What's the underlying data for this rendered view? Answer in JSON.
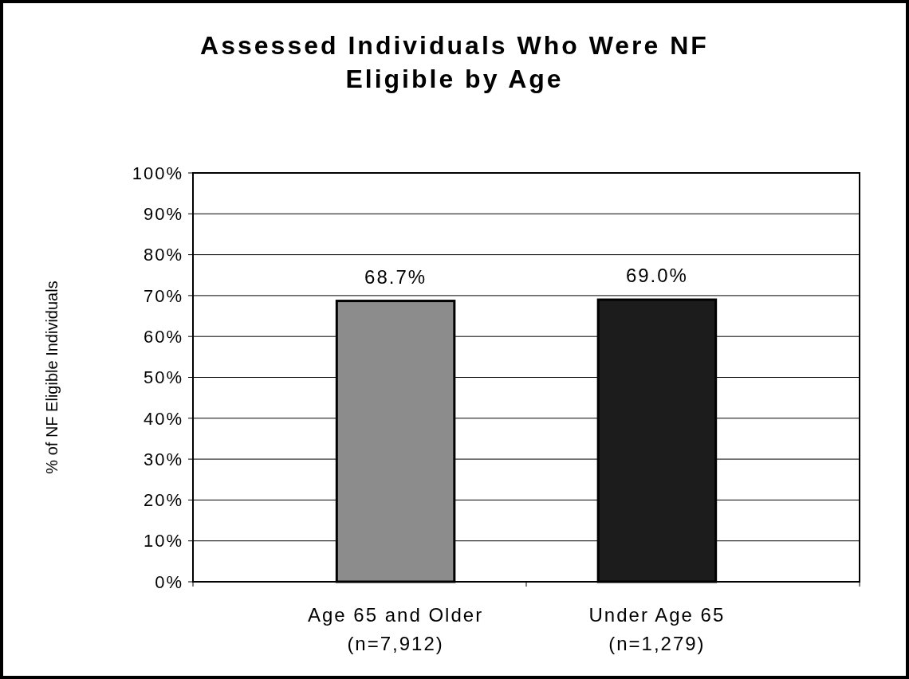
{
  "chart_data": {
    "type": "bar",
    "title": "Assessed Individuals Who Were NF\nEligible by Age",
    "ylabel": "% of NF Eligible Individuals",
    "categories": [
      "Age 65 and Older\n(n=7,912)",
      "Under Age 65\n(n=1,279)"
    ],
    "values": [
      68.7,
      69.0
    ],
    "colors": [
      "#8c8c8c",
      "#1c1c1c"
    ],
    "value_labels": [
      "68.7%",
      "69.0%"
    ],
    "ylim": [
      0,
      100
    ],
    "yticks": [
      {
        "value": 0,
        "label": "0%"
      },
      {
        "value": 10,
        "label": "10%"
      },
      {
        "value": 20,
        "label": "20%"
      },
      {
        "value": 30,
        "label": "30%"
      },
      {
        "value": 40,
        "label": "40%"
      },
      {
        "value": 50,
        "label": "50%"
      },
      {
        "value": 60,
        "label": "60%"
      },
      {
        "value": 70,
        "label": "70%"
      },
      {
        "value": 80,
        "label": "80%"
      },
      {
        "value": 90,
        "label": "90%"
      },
      {
        "value": 100,
        "label": "100%"
      }
    ],
    "grid": "y"
  }
}
